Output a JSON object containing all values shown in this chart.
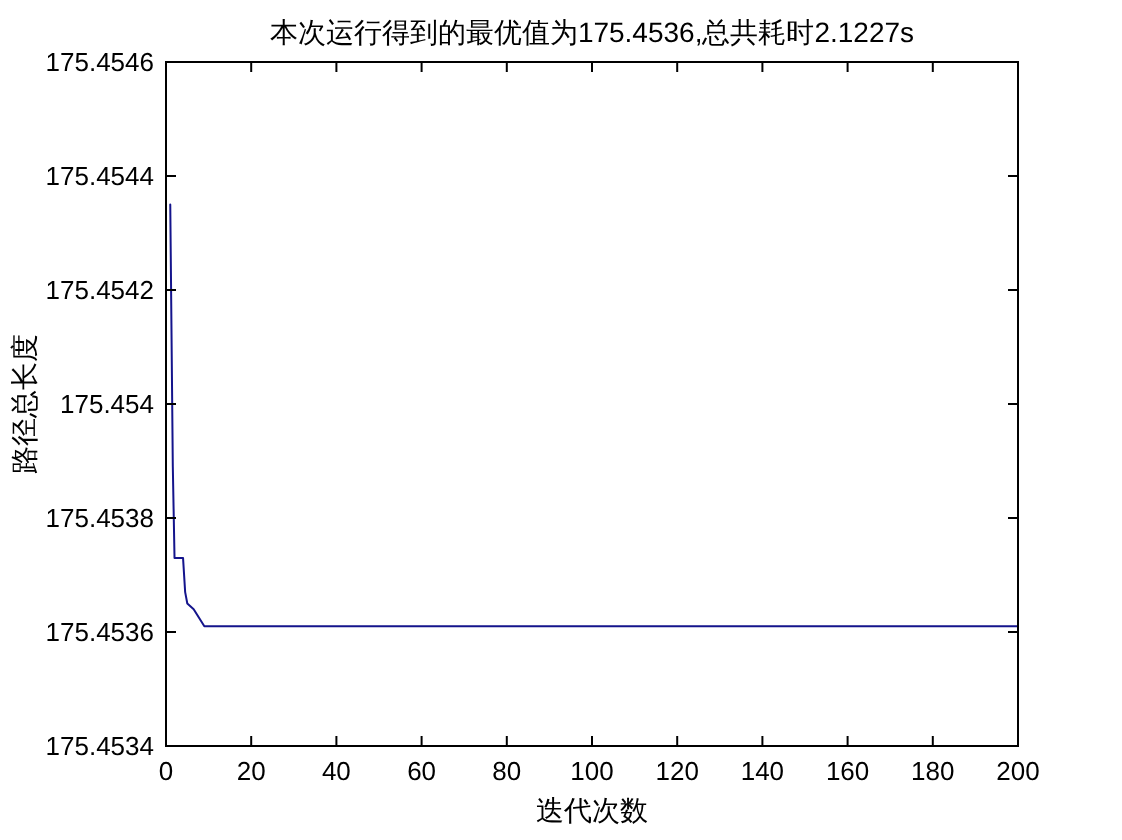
{
  "chart_data": {
    "type": "line",
    "title": "本次运行得到的最优值为175.4536,总共耗时2.1227s",
    "xlabel": "迭代次数",
    "ylabel": "路径总长度",
    "x": [
      1,
      1.6,
      2,
      4,
      4.5,
      5,
      6.5,
      9,
      200
    ],
    "series": [
      {
        "color": "#14148c",
        "values": [
          175.45435,
          175.45389,
          175.45373,
          175.45373,
          175.45367,
          175.45365,
          175.45364,
          175.45361,
          175.45361
        ]
      }
    ],
    "xlim": [
      0,
      200
    ],
    "ylim": [
      175.4534,
      175.4546
    ],
    "xticks": [
      0,
      20,
      40,
      60,
      80,
      100,
      120,
      140,
      160,
      180,
      200
    ],
    "yticks": [
      175.4534,
      175.4536,
      175.4538,
      175.454,
      175.4542,
      175.4544,
      175.4546
    ],
    "line_style": "solid"
  }
}
